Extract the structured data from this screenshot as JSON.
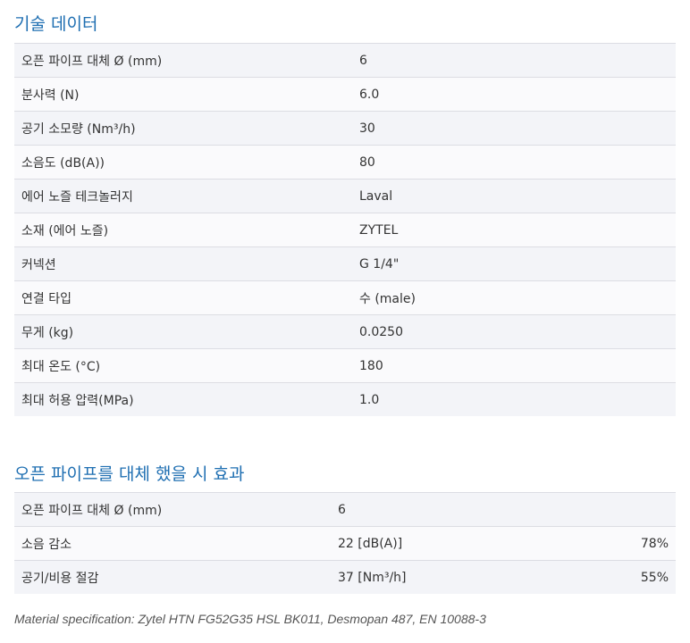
{
  "tech": {
    "title": "기술 데이터",
    "rows": [
      {
        "label": "오픈 파이프 대체 Ø (mm)",
        "value": "6"
      },
      {
        "label": "분사력 (N)",
        "value": "6.0"
      },
      {
        "label": "공기 소모량 (Nm³/h)",
        "value": "30"
      },
      {
        "label": "소음도 (dB(A))",
        "value": "80"
      },
      {
        "label": "에어 노즐 테크놀러지",
        "value": "Laval"
      },
      {
        "label": "소재 (에어 노즐)",
        "value": "ZYTEL"
      },
      {
        "label": "커넥션",
        "value": "G 1/4\""
      },
      {
        "label": "연결 타입",
        "value": "수 (male)"
      },
      {
        "label": "무게 (kg)",
        "value": "0.0250"
      },
      {
        "label": "최대 온도 (°C)",
        "value": "180"
      },
      {
        "label": "최대 허용 압력(MPa)",
        "value": "1.0"
      }
    ]
  },
  "effect": {
    "title": "오픈 파이프를 대체 했을 시 효과",
    "rows": [
      {
        "label": "오픈 파이프 대체 Ø (mm)",
        "value": "6",
        "percent": ""
      },
      {
        "label": "소음 감소",
        "value": "22 [dB(A)]",
        "percent": "78%"
      },
      {
        "label": "공기/비용 절감",
        "value": "37 [Nm³/h]",
        "percent": "55%"
      }
    ]
  },
  "note": "Material specification: Zytel HTN FG52G35 HSL BK011, Desmopan 487, EN 10088-3"
}
